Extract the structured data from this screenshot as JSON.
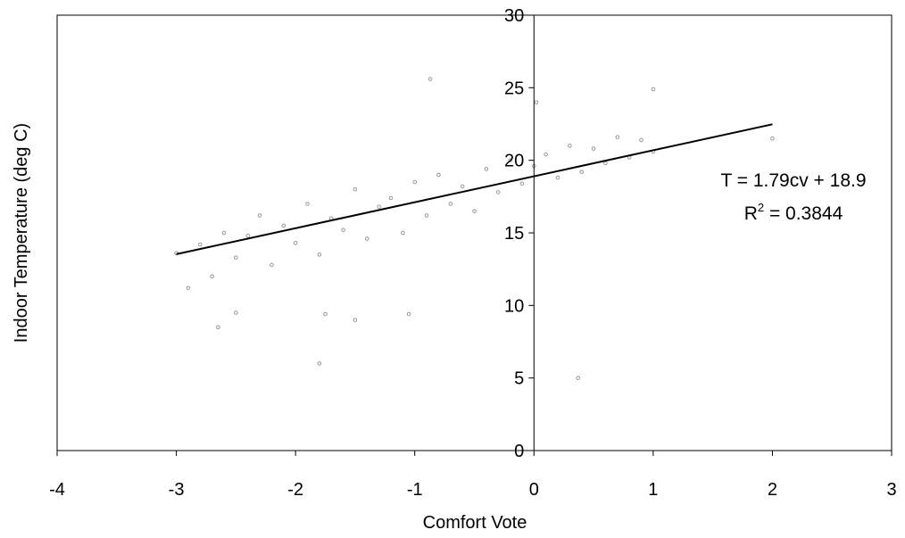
{
  "chart_data": {
    "type": "scatter",
    "title": "",
    "xlabel": "Comfort Vote",
    "ylabel": "Indoor Temperature (deg C)",
    "xlim": [
      -4,
      3
    ],
    "ylim": [
      0,
      30
    ],
    "x_ticks": [
      -4,
      -3,
      -2,
      -1,
      0,
      1,
      2,
      3
    ],
    "x_tick_labels": [
      "-4",
      "-3",
      "-2",
      "-1",
      "0",
      "1",
      "2",
      "3"
    ],
    "y_ticks": [
      0,
      5,
      10,
      15,
      20,
      25,
      30
    ],
    "y_tick_labels": [
      "0",
      "5",
      "10",
      "15",
      "20",
      "25",
      "30"
    ],
    "grid": false,
    "marker_color": "#8c8c8c",
    "line_color": "#000000",
    "series": [
      {
        "values": [
          [
            -3.0,
            13.6
          ],
          [
            -2.9,
            11.2
          ],
          [
            -2.8,
            14.2
          ],
          [
            -2.7,
            12.0
          ],
          [
            -2.6,
            15.0
          ],
          [
            -2.5,
            13.3
          ],
          [
            -2.4,
            14.8
          ],
          [
            -2.3,
            16.2
          ],
          [
            -2.2,
            12.8
          ],
          [
            -2.1,
            15.5
          ],
          [
            -2.0,
            14.3
          ],
          [
            -1.9,
            17.0
          ],
          [
            -1.8,
            13.5
          ],
          [
            -1.7,
            16.0
          ],
          [
            -1.6,
            15.2
          ],
          [
            -1.5,
            18.0
          ],
          [
            -1.4,
            14.6
          ],
          [
            -1.3,
            16.8
          ],
          [
            -1.2,
            17.4
          ],
          [
            -1.1,
            15.0
          ],
          [
            -1.0,
            18.5
          ],
          [
            -0.9,
            16.2
          ],
          [
            -0.8,
            19.0
          ],
          [
            -0.7,
            17.0
          ],
          [
            -0.6,
            18.2
          ],
          [
            -0.5,
            16.5
          ],
          [
            -0.4,
            19.4
          ],
          [
            -0.3,
            17.8
          ],
          [
            -0.2,
            20.0
          ],
          [
            -0.1,
            18.4
          ],
          [
            0.0,
            19.6
          ],
          [
            0.1,
            20.4
          ],
          [
            0.2,
            18.8
          ],
          [
            0.3,
            21.0
          ],
          [
            0.4,
            19.2
          ],
          [
            0.5,
            20.8
          ],
          [
            0.6,
            19.8
          ],
          [
            0.7,
            21.6
          ],
          [
            0.8,
            20.2
          ],
          [
            0.9,
            21.4
          ],
          [
            1.0,
            20.6
          ],
          [
            -2.65,
            8.5
          ],
          [
            -2.5,
            9.5
          ],
          [
            -1.8,
            6.0
          ],
          [
            -1.75,
            9.4
          ],
          [
            -1.5,
            9.0
          ],
          [
            -1.05,
            9.4
          ],
          [
            0.37,
            5.0
          ],
          [
            -0.87,
            25.6
          ],
          [
            0.02,
            24.0
          ],
          [
            1.0,
            24.9
          ],
          [
            2.0,
            21.5
          ]
        ]
      }
    ],
    "trendline": {
      "slope": 1.79,
      "intercept": 18.9,
      "x_from": -3.0,
      "x_to": 2.0
    },
    "annotations": {
      "equation": "T = 1.79cv + 18.9",
      "r2_prefix": "R",
      "r2_sup": "2",
      "r2_value": " = 0.3844"
    }
  }
}
